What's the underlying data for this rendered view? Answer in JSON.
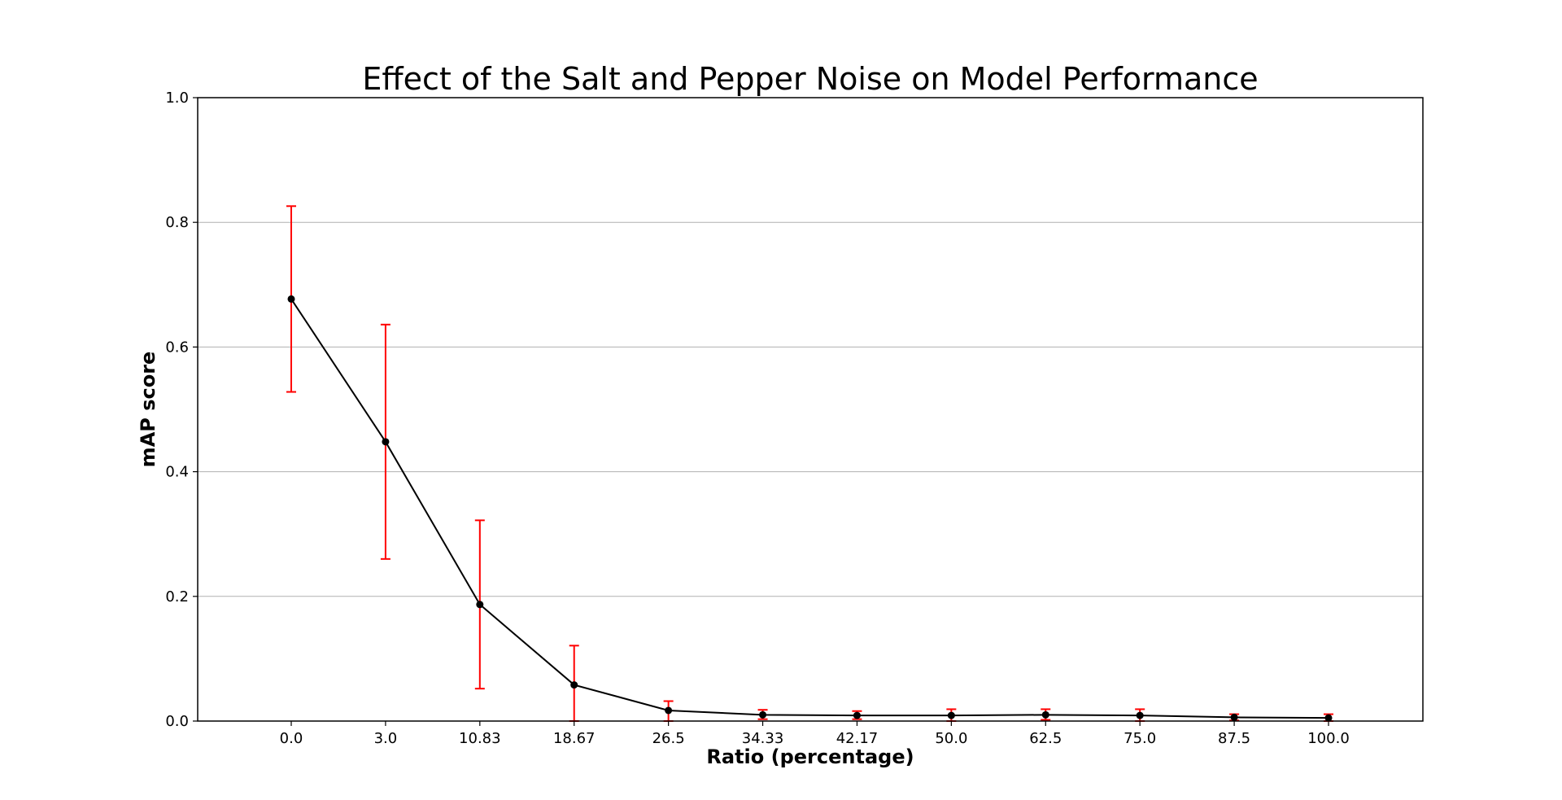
{
  "chart_data": {
    "type": "line",
    "title": "Effect of the Salt and Pepper Noise on Model Performance",
    "xlabel": "Ratio (percentage)",
    "ylabel": "mAP score",
    "categories": [
      "0.0",
      "3.0",
      "10.83",
      "18.67",
      "26.5",
      "34.33",
      "42.17",
      "50.0",
      "62.5",
      "75.0",
      "87.5",
      "100.0"
    ],
    "series": [
      {
        "values": [
          0.677,
          0.448,
          0.187,
          0.058,
          0.017,
          0.01,
          0.009,
          0.009,
          0.01,
          0.009,
          0.006,
          0.005
        ],
        "error_low": [
          0.528,
          0.26,
          0.052,
          0.0,
          0.0,
          0.003,
          0.003,
          0.0,
          0.002,
          0.0,
          0.001,
          0.0
        ],
        "error_high": [
          0.826,
          0.636,
          0.322,
          0.121,
          0.032,
          0.018,
          0.016,
          0.019,
          0.019,
          0.019,
          0.011,
          0.011
        ],
        "line_color": "#000000",
        "error_color": "#ff0000"
      }
    ],
    "yticks": [
      "0.0",
      "0.2",
      "0.4",
      "0.6",
      "0.8",
      "1.0"
    ],
    "ylim": [
      0,
      1.0
    ],
    "grid": "horizontal",
    "legend": "none"
  }
}
